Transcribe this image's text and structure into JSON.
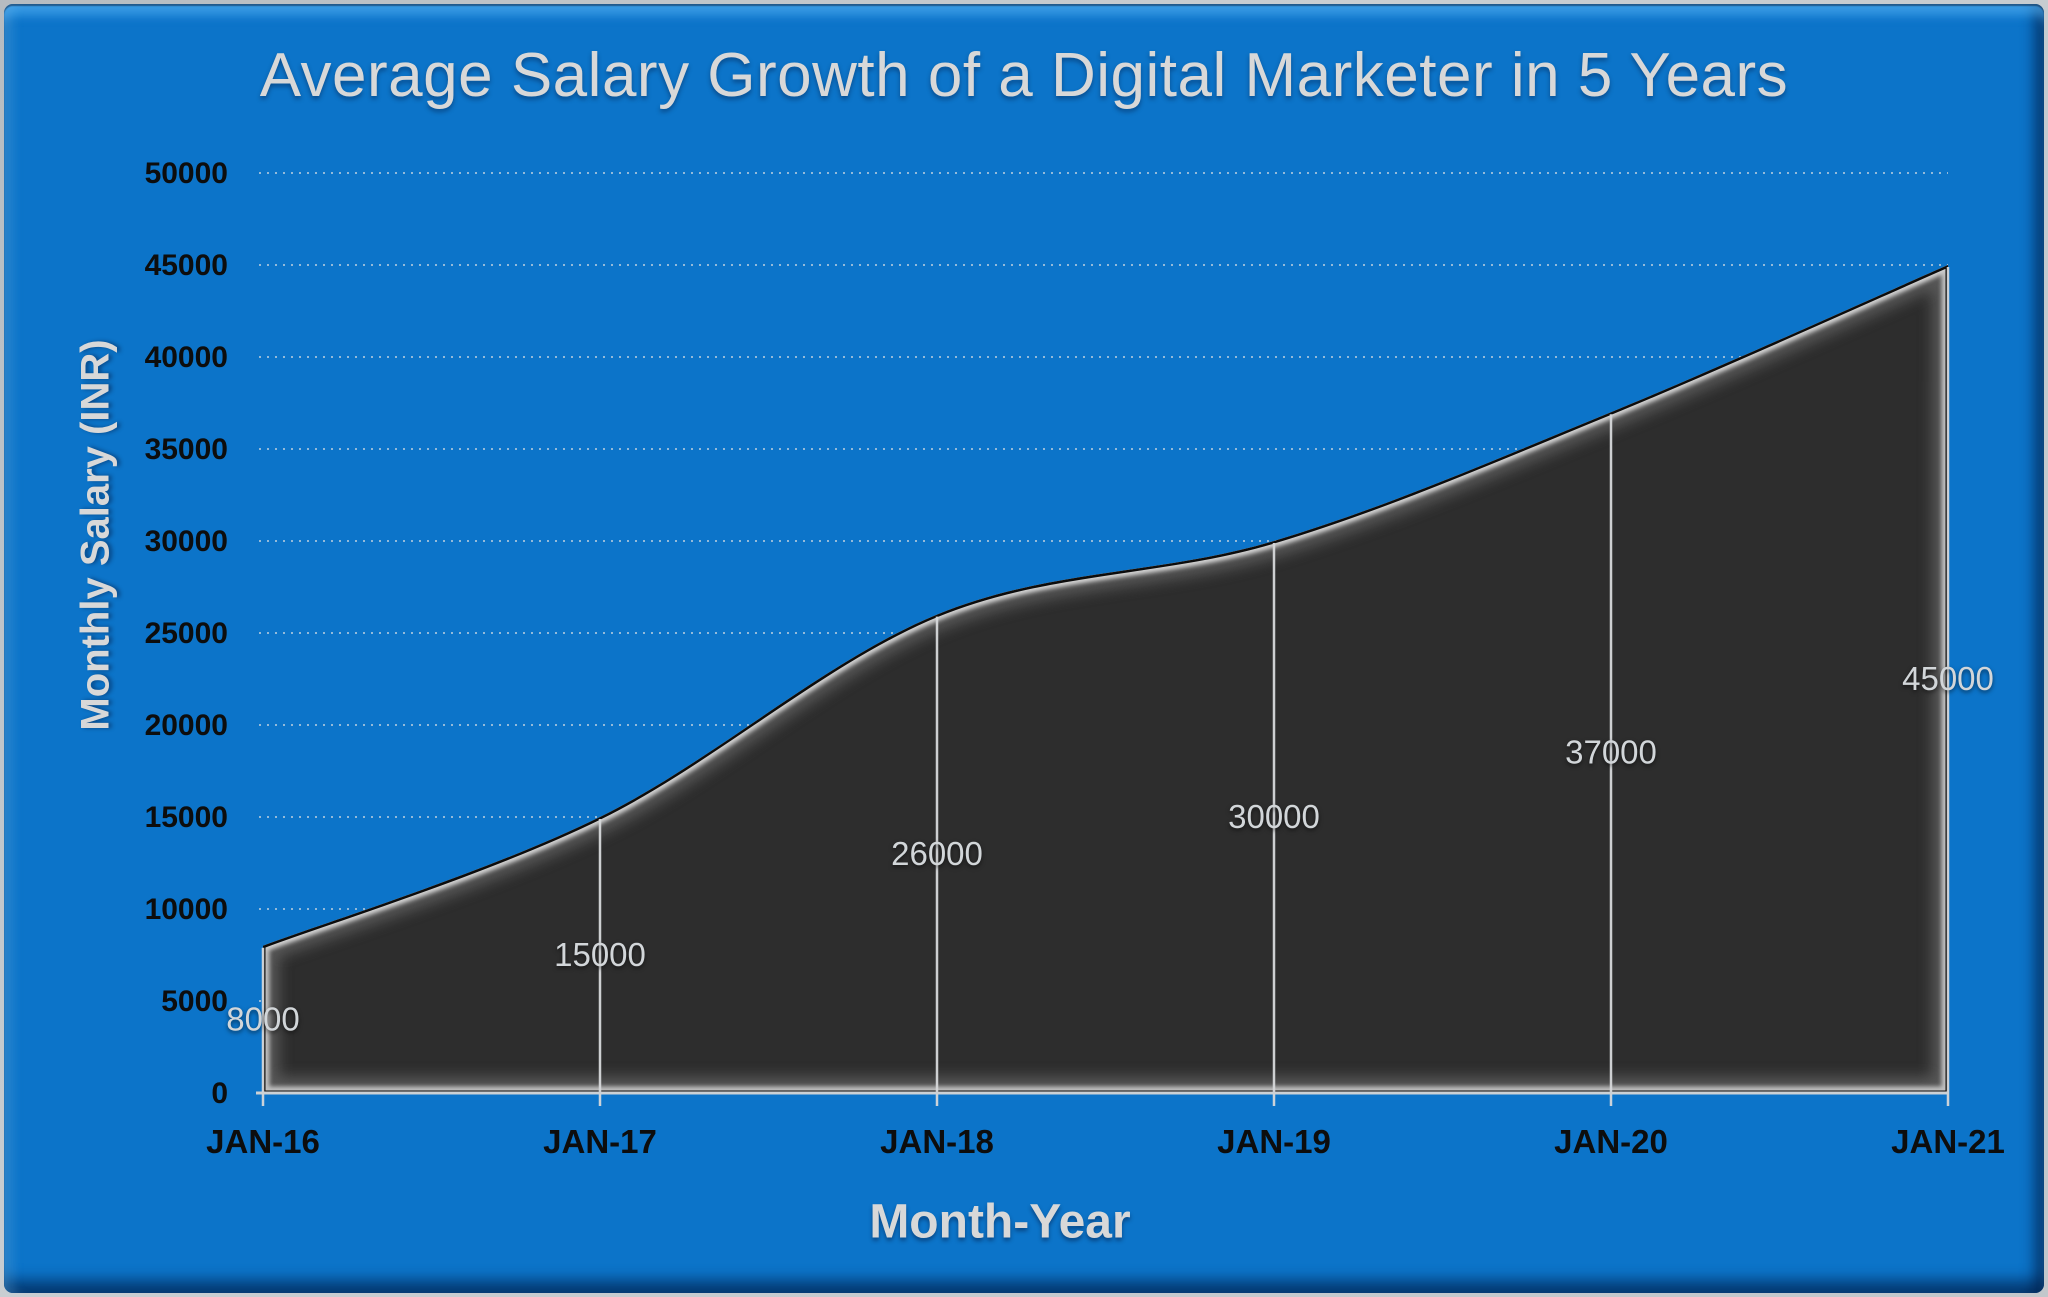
{
  "chart_data": {
    "type": "area",
    "title": "Average Salary Growth of a Digital Marketer in 5 Years",
    "xlabel": "Month-Year",
    "ylabel": "Monthly Salary (INR)",
    "categories": [
      "JAN-16",
      "JAN-17",
      "JAN-18",
      "JAN-19",
      "JAN-20",
      "JAN-21"
    ],
    "values": [
      8000,
      15000,
      26000,
      30000,
      37000,
      45000
    ],
    "data_labels": [
      "8000",
      "15000",
      "26000",
      "30000",
      "37000",
      "45000"
    ],
    "ylim": [
      0,
      50000
    ],
    "yticks": [
      0,
      5000,
      10000,
      15000,
      20000,
      25000,
      30000,
      35000,
      40000,
      45000,
      50000
    ],
    "grid": "horizontal-dotted",
    "legend": "none",
    "style": {
      "background_blue": "#0c74c9",
      "frame_gray": "#c2c7cb",
      "area_fill": "#2d2d2d",
      "area_rim_dark": "#0c0c0c",
      "bevel_soft": "#5a5a5a",
      "bevel_bright": "#c6c6c6",
      "bevel_ridge_top": "#dcdcdc",
      "title_color": "#d8d8d8",
      "tick_label_color": "#0d0d0d",
      "data_label_color": "#d2d6d9",
      "gridline_color": "#c9d6e0",
      "dropline_color": "#d6d8da",
      "axis_line_color": "#ccd1d5"
    }
  }
}
